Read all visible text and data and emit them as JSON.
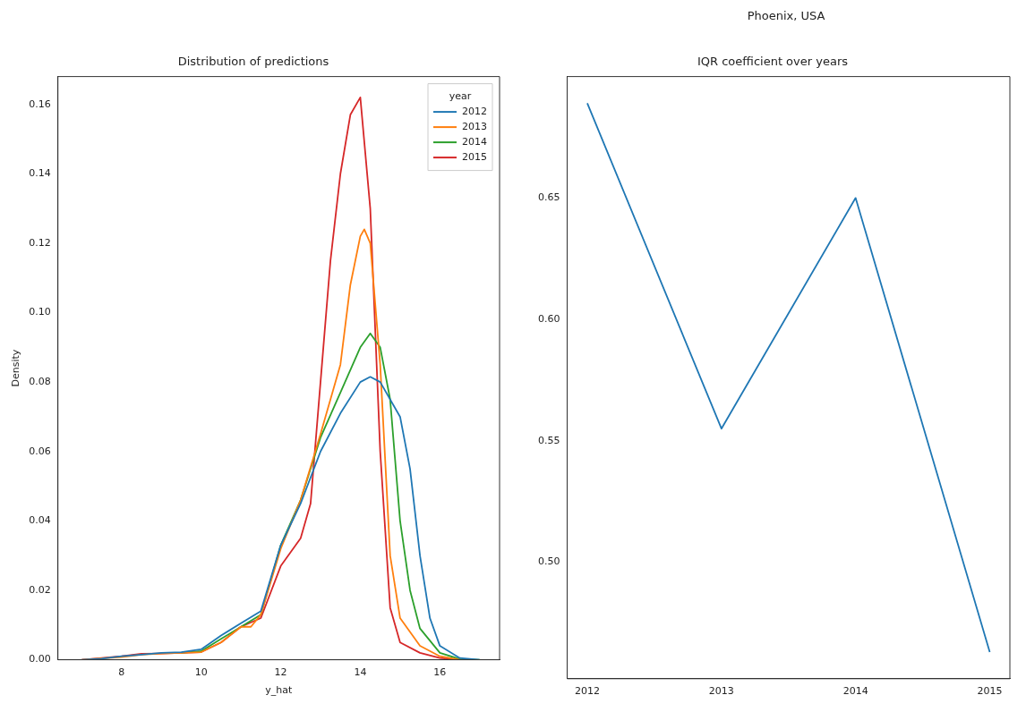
{
  "chart_data": [
    {
      "type": "line",
      "title": "Distribution of predictions",
      "xlabel": "y_hat",
      "ylabel": "Density",
      "legend": "top right",
      "legend_title": "year",
      "marker": "none",
      "xlim": [
        6.4,
        17.5
      ],
      "ylim": [
        0,
        0.168
      ],
      "xticks": [
        8,
        10,
        12,
        14,
        16
      ],
      "yticks": [
        {
          "value": 0,
          "label": "0.00"
        },
        0.02,
        0.04,
        0.06,
        0.08,
        {
          "value": 0.1,
          "label": "0.10"
        },
        0.12,
        0.14,
        0.16
      ],
      "series": [
        {
          "name": "2012",
          "color": "#1f77b4",
          "x": [
            7,
            7.5,
            8,
            8.5,
            9,
            9.5,
            10,
            10.5,
            11,
            11.5,
            12,
            12.5,
            13,
            13.5,
            14,
            14.25,
            14.5,
            15,
            15.25,
            15.5,
            15.75,
            16,
            16.5,
            17
          ],
          "values": [
            0,
            0.0003,
            0.001,
            0.0015,
            0.002,
            0.0022,
            0.003,
            0.007,
            0.0105,
            0.014,
            0.033,
            0.045,
            0.06,
            0.071,
            0.08,
            0.0815,
            0.08,
            0.07,
            0.055,
            0.03,
            0.012,
            0.004,
            0.0005,
            0
          ]
        },
        {
          "name": "2013",
          "color": "#ff7f0e",
          "x": [
            7,
            8,
            8.5,
            9,
            9.5,
            10,
            10.5,
            11,
            11.25,
            11.5,
            12,
            12.5,
            13,
            13.5,
            13.75,
            14,
            14.1,
            14.25,
            14.5,
            14.75,
            15,
            15.5,
            16,
            16.5
          ],
          "values": [
            0,
            0.0008,
            0.0015,
            0.0018,
            0.002,
            0.0022,
            0.005,
            0.0095,
            0.0095,
            0.013,
            0.032,
            0.046,
            0.065,
            0.085,
            0.108,
            0.122,
            0.124,
            0.12,
            0.085,
            0.03,
            0.012,
            0.004,
            0.001,
            0
          ]
        },
        {
          "name": "2014",
          "color": "#2ca02c",
          "x": [
            9.5,
            10,
            10.5,
            11,
            11.5,
            12,
            12.5,
            13,
            13.5,
            14,
            14.25,
            14.5,
            14.75,
            15,
            15.25,
            15.5,
            16,
            16.5,
            17
          ],
          "values": [
            0.002,
            0.0025,
            0.006,
            0.0095,
            0.013,
            0.033,
            0.046,
            0.064,
            0.077,
            0.09,
            0.094,
            0.09,
            0.075,
            0.04,
            0.02,
            0.009,
            0.002,
            0.0002,
            0
          ]
        },
        {
          "name": "2015",
          "color": "#d62728",
          "x": [
            7,
            8,
            8.5,
            9,
            9.5,
            10,
            10.5,
            11,
            11.5,
            12,
            12.5,
            12.75,
            13,
            13.25,
            13.5,
            13.75,
            14,
            14.25,
            14.5,
            14.75,
            15,
            15.5,
            16,
            16.5
          ],
          "values": [
            0,
            0.001,
            0.0017,
            0.0018,
            0.002,
            0.0022,
            0.005,
            0.0095,
            0.012,
            0.027,
            0.035,
            0.045,
            0.08,
            0.115,
            0.14,
            0.157,
            0.162,
            0.13,
            0.06,
            0.015,
            0.005,
            0.002,
            0.0005,
            0
          ]
        }
      ]
    },
    {
      "type": "line",
      "title": "IQR coefficient over years",
      "annotations": [
        "Phoenix, USA"
      ],
      "marker": "none",
      "xlim": [
        2011.85,
        2015.15
      ],
      "ylim": [
        0.452,
        0.7
      ],
      "xticks": [
        2012,
        2013,
        2014,
        2015
      ],
      "yticks": [
        {
          "value": 0.5,
          "label": "0.50"
        },
        0.55,
        {
          "value": 0.6,
          "label": "0.60"
        },
        0.65
      ],
      "series": [
        {
          "color": "#1f77b4",
          "x": [
            2012,
            2013,
            2014,
            2015
          ],
          "values": [
            0.689,
            0.555,
            0.65,
            0.463
          ]
        }
      ]
    }
  ]
}
